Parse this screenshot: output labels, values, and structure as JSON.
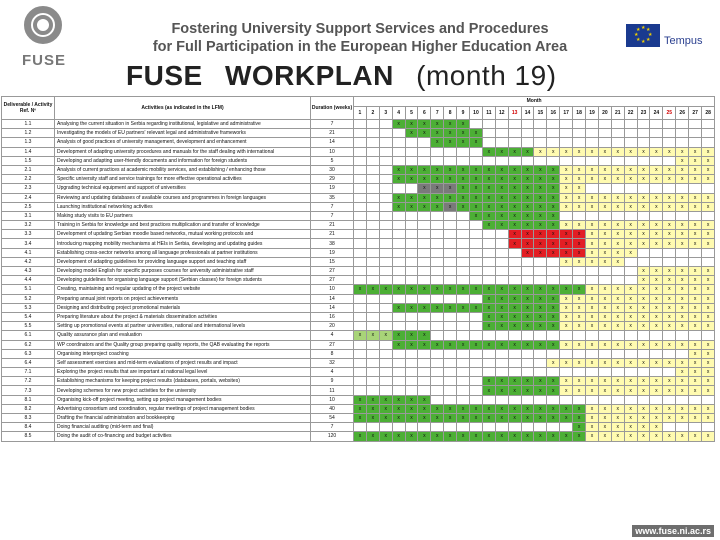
{
  "header": {
    "logo_text": "FUSE",
    "title_line1": "Fostering University Support Services and Procedures",
    "title_line2": "for Full Participation in the European Higher Education Area",
    "partner_logo": "Tempus",
    "workplan_title": "FUSE",
    "workplan_subtitle": "WORKPLAN",
    "workplan_month": "(month 19)"
  },
  "footer": {
    "url": "www.fuse.ni.ac.rs"
  },
  "table": {
    "col_headers": {
      "deliverable": "Deliverable / Activity Ref. Nº",
      "activities": "Activities (as indicated in the LFM)",
      "duration": "Duration (weeks)",
      "month": "Month"
    },
    "months": [
      "1",
      "2",
      "3",
      "4",
      "5",
      "6",
      "7",
      "8",
      "9",
      "10",
      "11",
      "12",
      "13",
      "14",
      "15",
      "16",
      "17",
      "18",
      "19",
      "20",
      "21",
      "22",
      "23",
      "24",
      "25",
      "26",
      "27",
      "28"
    ],
    "colors": {
      "yellow": "#fffbb0",
      "green": "#4caf35",
      "light_green": "#a8d478",
      "grey": "#7a7a7a",
      "red": "#e31e24"
    },
    "rows": [
      {
        "ref": "1.1",
        "act": "Analysing the current situation in Serbia regarding institutional, legislative and administrative",
        "dur": "7",
        "cells": "000XXXXXX0000000000000000000",
        "bg": "000GGGGGG0000000000000000000"
      },
      {
        "ref": "1.2",
        "act": "Investigating the models of EU partners' relevant legal and administrative frameworks",
        "dur": "21",
        "cells": "0000XXXXXX000000000000000000",
        "bg": "0000GGGGGG000000000000000000"
      },
      {
        "ref": "1.3",
        "act": "Analysis of good practices of university management, development and enhancement",
        "dur": "14",
        "cells": "000000XXXX000000000000000000",
        "bg": "000000GGGG000000000000000000"
      },
      {
        "ref": "1.4",
        "act": "Development of adapting university procedures and manuals for the staff dealing with international",
        "dur": "10",
        "cells": "0000000000XXXXXXXXXXXXXXXXXX",
        "bg": "0000000000GGGGYYYYYYYYYYYYYY"
      },
      {
        "ref": "1.5",
        "act": "Developing and adapting user-friendly documents and information for foreign students",
        "dur": "5",
        "cells": "0000000000000000000000000XXX",
        "bg": "0000000000000000000000000YYY"
      },
      {
        "ref": "2.1",
        "act": "Analysis of current practices at academic mobility services, and establishing / enhancing those",
        "dur": "30",
        "cells": "000XXXXXXXXXXXXXXXXXXXXXXXXX",
        "bg": "000GGGGGGGGGGGGGYYYYYYYYYYYY"
      },
      {
        "ref": "2.2",
        "act": "Specific university staff and service trainings for more effective operational activities",
        "dur": "29",
        "cells": "000XXXXXXXXXXXXXXXXXXXXXXXXX",
        "bg": "000GGGGGGGGGGGGGYYYYYYYYYYYY"
      },
      {
        "ref": "2.3",
        "act": "Upgrading technical equipment and support of universities",
        "dur": "19",
        "cells": "00000XXXXXXXXXXXXX0000000000",
        "bg": "00000DDDGGGGGGGGYY0000000000"
      },
      {
        "ref": "2.4",
        "act": "Reviewing and updating databases of available courses and programmes in foreign languages",
        "dur": "35",
        "cells": "000XXXXXXXXXXXXXXXXXXXXXXXXX",
        "bg": "000GGGGGGGGGGGGGYYYYYYYYYYYY"
      },
      {
        "ref": "2.5",
        "act": "Launching institutional networking activities",
        "dur": "7",
        "cells": "000XXXXXXXXXXXXXXXXXXXXXXXXX",
        "bg": "000GGGGDGGGGGGGGYYYYYYYYYYYY"
      },
      {
        "ref": "3.1",
        "act": "Making study visits to EU partners",
        "dur": "7",
        "cells": "000000000XXXXXXX000000000000",
        "bg": "000000000GGGGGGG000000000000"
      },
      {
        "ref": "3.2",
        "act": "Training in Serbia for knowledge and best practices multiplication and transfer of knowledge",
        "dur": "21",
        "cells": "0000000000XXXXXXXXXXXXXXXXXX",
        "bg": "0000000000GGGGGGYYYYYYYYYYYY"
      },
      {
        "ref": "3.3",
        "act": "Development of updating Serbian moodle based networks, mutual working protocols and",
        "dur": "21",
        "cells": "000000000000XXXXXXXXXXXXXXXX",
        "bg": "000000000000RRRRRRYYYYYYYYYY"
      },
      {
        "ref": "3.4",
        "act": "Introducing mapping mobility mechanisms at HEIs in Serbia, developing and updating guides",
        "dur": "38",
        "cells": "000000000000XXXXXXXXXXXXXXXX",
        "bg": "000000000000RRRRRRYYYYYYYYYY"
      },
      {
        "ref": "4.1",
        "act": "Establishing cross-sector networks among all language professionals at partner institutions",
        "dur": "19",
        "cells": "0000000000000XXXXXXXXX000000",
        "bg": "0000000000000RRRRRYYYY000000"
      },
      {
        "ref": "4.2",
        "act": "Development of adapting guidelines for providing language support and teaching staff",
        "dur": "15",
        "cells": "0000000000000000XXXXX0000000",
        "bg": "0000000000000000YYYYY0000000"
      },
      {
        "ref": "4.3",
        "act": "Developing model English for specific purposes courses for university administrative staff",
        "dur": "27",
        "cells": "0000000000000000000000XXXXXX",
        "bg": "0000000000000000000000YYYYYY"
      },
      {
        "ref": "4.4",
        "act": "Developing guidelines for organising language support (Serbian classes) for foreign students",
        "dur": "27",
        "cells": "0000000000000000000000XXXXXX",
        "bg": "0000000000000000000000YYYYYY"
      },
      {
        "ref": "5.1",
        "act": "Creating, maintaining and regular updating of the project website",
        "dur": "10",
        "cells": "XXXXXXXXXXXXXXXXXXXXXXXXXXXX",
        "bg": "GGGGGGGGGGGGGGGGGGYYYYYYYYYY"
      },
      {
        "ref": "5.2",
        "act": "Preparing annual joint reports on project achievements",
        "dur": "14",
        "cells": "0000000000XXXXXXXXXXXXXXXXXX",
        "bg": "0000000000GGGGGGYYYYYYYYYYYY"
      },
      {
        "ref": "5.3",
        "act": "Designing and distributing project promotional materials",
        "dur": "14",
        "cells": "000XXXXXXXXXXXXXXXXXXXXXXXXX",
        "bg": "000GGGGGGGGGGGGGYYYYYYYYYYYY"
      },
      {
        "ref": "5.4",
        "act": "Preparing literature about the project & materials dissemination activities",
        "dur": "16",
        "cells": "0000000000XXXXXXXXXXXXXXXXXX",
        "bg": "0000000000GGGGGGYYYYYYYYYYYY"
      },
      {
        "ref": "5.5",
        "act": "Setting up promotional events at partner universities, national and international levels",
        "dur": "20",
        "cells": "0000000000XXXXXXXXXXXXXXXXXX",
        "bg": "0000000000GGGGGGYYYYYYYYYYYY"
      },
      {
        "ref": "6.1",
        "act": "Quality assurance plan and evaluation",
        "dur": "4",
        "cells": "XXXXXX0000000000000000000000",
        "bg": "LLLGGG0000000000000000000000"
      },
      {
        "ref": "6.2",
        "act": "WP coordinators and the Quality group preparing quality reports, the QAB evaluating the reports",
        "dur": "27",
        "cells": "000XXXXXXXXXXXXXXXXXXXXXXXXX",
        "bg": "000GGGGGGGGGGGGGYYYYYYYYYYYY"
      },
      {
        "ref": "6.3",
        "act": "Organising interproject coaching",
        "dur": "8",
        "cells": "00000000000000000000000000XX",
        "bg": "00000000000000000000000000YY"
      },
      {
        "ref": "6.4",
        "act": "Self assessment exercises and mid-term evaluations of project results and impact",
        "dur": "32",
        "cells": "000000000000000XXXXXXXXXXXXX",
        "bg": "000000000000000YYYYYYYYYYYYY"
      },
      {
        "ref": "7.1",
        "act": "Exploring the project results that are important at national legal level",
        "dur": "4",
        "cells": "0000000000000000000000000XXX",
        "bg": "0000000000000000000000000YYY"
      },
      {
        "ref": "7.2",
        "act": "Establishing mechanisms for keeping project results (databases, portals, websites)",
        "dur": "9",
        "cells": "0000000000XXXXXXXXXXXXXXXXXX",
        "bg": "0000000000GGGGGGYYYYYYYYYYYY"
      },
      {
        "ref": "7.3",
        "act": "Developing schemes for new project activities for the university",
        "dur": "11",
        "cells": "0000000000XXXXXXXXXXXXXXXXXX",
        "bg": "0000000000GGGGGGYYYYYYYYYYYY"
      },
      {
        "ref": "8.1",
        "act": "Organising kick-off project meeting, setting up project management bodies",
        "dur": "10",
        "cells": "XXXXXX0000000000000000000000",
        "bg": "GGGGGG0000000000000000000000"
      },
      {
        "ref": "8.2",
        "act": "Advertising consortium and coordination, regular meetings of project management bodies",
        "dur": "40",
        "cells": "XXXXXXXXXXXXXXXXXXXXXXXXXXXX",
        "bg": "GGGGGGGGGGGGGGGGGGYYYYYYYYYY"
      },
      {
        "ref": "8.3",
        "act": "Drafting the financial administration and bookkeeping",
        "dur": "54",
        "cells": "XXXXXXXXXXXXXXXXXXXXXXXXXXXX",
        "bg": "GGGGGGGGGGGGGGGGGGYYYYYYYYYY"
      },
      {
        "ref": "8.4",
        "act": "Doing financial auditing (mid-term and final)",
        "dur": "7",
        "cells": "00000000000000000XXXXXXX0000",
        "bg": "00000000000000000GYYYYYY0000"
      },
      {
        "ref": "8.5",
        "act": "Doing the audit of co-financing and budget activities",
        "dur": "120",
        "cells": "XXXXXXXXXXXXXXXXXXXXXXXXXXXX",
        "bg": "GGGGGGGGGGGGGGGGGGYYYYYYYYYY"
      }
    ]
  }
}
